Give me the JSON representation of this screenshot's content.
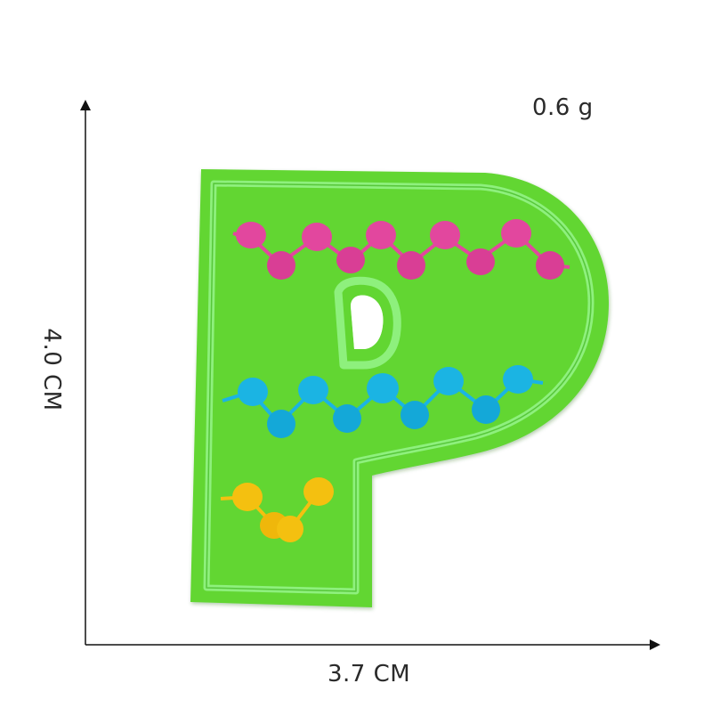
{
  "weight_label": "0.6 g",
  "width_label": "3.7 CM",
  "height_label": "4.0 CM",
  "colors": {
    "felt": "#62d632",
    "stitch": "#8ef07d",
    "pink": "#e2479e",
    "blue": "#1bb4e3",
    "yellow": "#f4c010",
    "axis": "#111111"
  }
}
